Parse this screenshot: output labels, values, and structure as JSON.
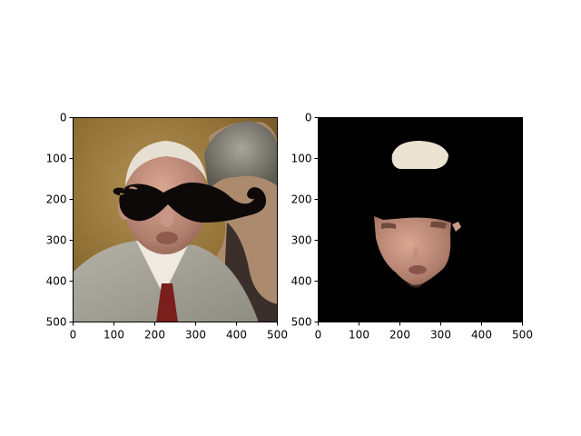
{
  "panels": [
    {
      "name": "left-image",
      "content": "photo of elderly man with black mustache overlay",
      "xlim": [
        0,
        500
      ],
      "ylim": [
        500,
        0
      ],
      "xticks": [
        "0",
        "100",
        "200",
        "300",
        "400",
        "500"
      ],
      "yticks": [
        "0",
        "100",
        "200",
        "300",
        "400",
        "500"
      ]
    },
    {
      "name": "right-image",
      "content": "segmented face mask on black background",
      "xlim": [
        0,
        500
      ],
      "ylim": [
        500,
        0
      ],
      "xticks": [
        "0",
        "100",
        "200",
        "300",
        "400",
        "500"
      ],
      "yticks": [
        "0",
        "100",
        "200",
        "300",
        "400",
        "500"
      ]
    }
  ],
  "colors": {
    "background": "#ffffff",
    "axis": "#000000",
    "mask_background": "#000000",
    "mustache": "#0d0908"
  }
}
